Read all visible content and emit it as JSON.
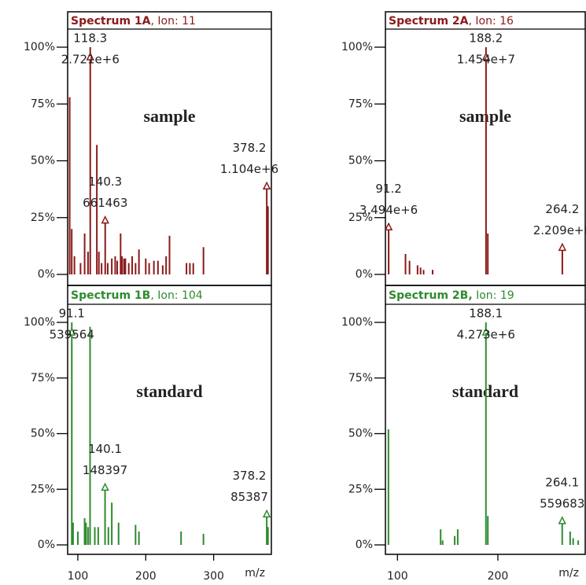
{
  "chart_data": [
    {
      "type": "bar",
      "title": "Spectrum 1A",
      "title_suffix": ", Ion: 11",
      "tag": "sample",
      "tag_color": "#e00000",
      "color": "#8b1a1a",
      "x": [
        88,
        91,
        95,
        104,
        110,
        115,
        118.3,
        128,
        131,
        135,
        140.3,
        144,
        150,
        155,
        158,
        163,
        165,
        168,
        170,
        175,
        180,
        185,
        190,
        200,
        205,
        212,
        218,
        225,
        230,
        235,
        260,
        265,
        270,
        285,
        378.2,
        380
      ],
      "values": [
        78,
        20,
        8,
        5,
        18,
        10,
        100,
        57,
        10,
        5,
        24,
        5,
        7,
        8,
        6,
        18,
        8,
        7,
        7,
        5,
        8,
        5,
        11,
        7,
        5,
        6,
        6,
        4,
        8,
        17,
        5,
        5,
        5,
        12,
        39,
        30
      ],
      "annotations": [
        {
          "x": 118.3,
          "lines": [
            "118.3",
            "2.721e+6"
          ]
        },
        {
          "x": 140.3,
          "lines": [
            "140.3",
            "661463"
          ]
        },
        {
          "x": 378.2,
          "lines": [
            "378.2",
            "1.104e+6"
          ]
        }
      ],
      "xlim": [
        85,
        385
      ],
      "ylim": [
        0,
        100
      ],
      "yticks": [
        {
          "value": 0,
          "label": "0%"
        },
        {
          "value": 25,
          "label": "25%"
        },
        {
          "value": 50,
          "label": "50%"
        },
        {
          "value": 75,
          "label": "75%"
        },
        {
          "value": 100,
          "label": "100%"
        }
      ]
    },
    {
      "type": "bar",
      "title": "Spectrum 1B",
      "title_suffix": ", Ion: 104",
      "tag": "standard",
      "tag_color": "#f0b400",
      "color": "#2e8b2e",
      "x": [
        91.1,
        93,
        100,
        110,
        112,
        115,
        118,
        125,
        130,
        140.1,
        145,
        150,
        160,
        185,
        190,
        252,
        285,
        378.2,
        380
      ],
      "values": [
        100,
        10,
        6,
        12,
        10,
        8,
        98,
        8,
        8,
        26,
        8,
        19,
        10,
        9,
        6,
        6,
        5,
        14,
        8
      ],
      "annotations": [
        {
          "x": 91.1,
          "lines": [
            "91.1",
            "539564"
          ]
        },
        {
          "x": 140.1,
          "lines": [
            "140.1",
            "148397"
          ]
        },
        {
          "x": 378.2,
          "lines": [
            "378.2",
            "85387"
          ]
        }
      ],
      "xlim": [
        85,
        385
      ],
      "ylim": [
        0,
        100
      ],
      "yticks": [
        {
          "value": 0,
          "label": "0%"
        },
        {
          "value": 25,
          "label": "25%"
        },
        {
          "value": 50,
          "label": "50%"
        },
        {
          "value": 75,
          "label": "75%"
        },
        {
          "value": 100,
          "label": "100%"
        }
      ],
      "xticks": [
        100,
        200,
        300
      ],
      "xlabel": "m/z"
    },
    {
      "type": "bar",
      "title": "Spectrum 2A",
      "title_suffix": ", Ion: 16",
      "tag": "sample",
      "tag_color": "#e00000",
      "color": "#8b1a1a",
      "x": [
        91.2,
        108,
        112,
        120,
        123,
        126,
        135,
        188.2,
        190,
        264.2
      ],
      "values": [
        21,
        9,
        6,
        4,
        3,
        2,
        2,
        100,
        18,
        12
      ],
      "annotations": [
        {
          "x": 188.2,
          "lines": [
            "188.2",
            "1.454e+7"
          ]
        },
        {
          "x": 91.2,
          "lines": [
            "91.2",
            "3.494e+6"
          ]
        },
        {
          "x": 264.2,
          "lines": [
            "264.2",
            "2.209e+6"
          ]
        }
      ],
      "xlim": [
        88,
        287
      ],
      "ylim": [
        0,
        100
      ],
      "yticks": [
        {
          "value": 0,
          "label": "0%"
        },
        {
          "value": 25,
          "label": "25%"
        },
        {
          "value": 50,
          "label": "50%"
        },
        {
          "value": 75,
          "label": "75%"
        },
        {
          "value": 100,
          "label": "100%"
        }
      ]
    },
    {
      "type": "bar",
      "title": "Spectrum 2B,",
      "title_suffix": " Ion: 19",
      "tag": "standard",
      "tag_color": "#f0b400",
      "color": "#2e8b2e",
      "x": [
        91,
        143,
        145,
        157,
        160,
        188.1,
        190,
        264.1,
        272,
        275,
        280
      ],
      "values": [
        52,
        7,
        2,
        4,
        7,
        100,
        13,
        11,
        6,
        3,
        2
      ],
      "annotations": [
        {
          "x": 188.1,
          "lines": [
            "188.1",
            "4.273e+6"
          ]
        },
        {
          "x": 264.1,
          "lines": [
            "264.1",
            "559683"
          ]
        }
      ],
      "xlim": [
        88,
        287
      ],
      "ylim": [
        0,
        100
      ],
      "yticks": [
        {
          "value": 0,
          "label": "0%"
        },
        {
          "value": 25,
          "label": "25%"
        },
        {
          "value": 50,
          "label": "50%"
        },
        {
          "value": 75,
          "label": "75%"
        },
        {
          "value": 100,
          "label": "100%"
        }
      ],
      "xticks": [
        100,
        200
      ],
      "xlabel": "m/z"
    }
  ]
}
